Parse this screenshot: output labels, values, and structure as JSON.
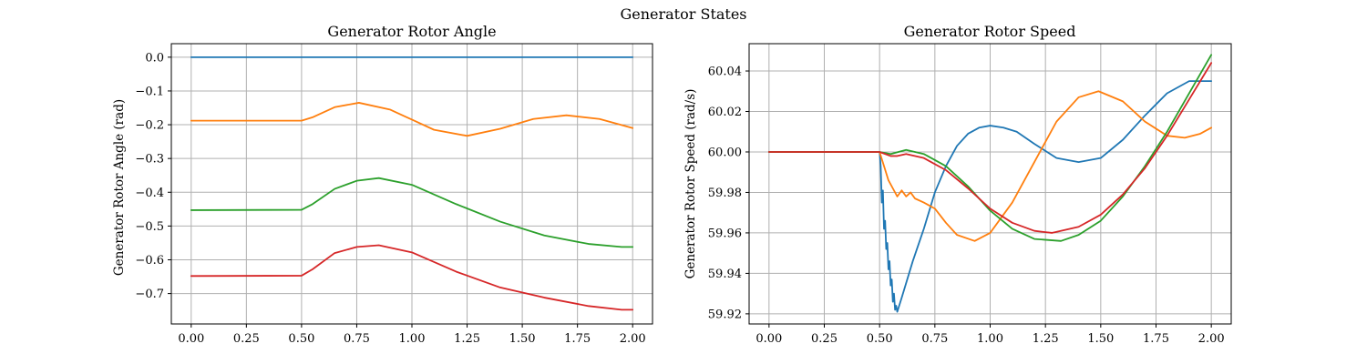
{
  "suptitle": "Generator States",
  "series_colors": [
    "#1f77b4",
    "#ff7f0e",
    "#2ca02c",
    "#d62728"
  ],
  "chart_data": [
    {
      "type": "line",
      "title": "Generator Rotor Angle",
      "xlabel": "",
      "ylabel": "Generator Rotor Angle (rad)",
      "xlim": [
        -0.09,
        2.09
      ],
      "ylim": [
        -0.79,
        0.04
      ],
      "xticks": [
        0.0,
        0.25,
        0.5,
        0.75,
        1.0,
        1.25,
        1.5,
        1.75,
        2.0
      ],
      "xtick_labels": [
        "0.00",
        "0.25",
        "0.50",
        "0.75",
        "1.00",
        "1.25",
        "1.50",
        "1.75",
        "2.00"
      ],
      "yticks": [
        0.0,
        -0.1,
        -0.2,
        -0.3,
        -0.4,
        -0.5,
        -0.6,
        -0.7
      ],
      "ytick_labels": [
        "0.0",
        "−0.1",
        "−0.2",
        "−0.3",
        "−0.4",
        "−0.5",
        "−0.6",
        "−0.7"
      ],
      "grid": true,
      "series": [
        {
          "x": [
            0.0,
            0.5,
            1.0,
            1.5,
            2.0
          ],
          "y": [
            0.0,
            0.0,
            0.0,
            0.0,
            0.0
          ]
        },
        {
          "x": [
            0.0,
            0.5,
            0.55,
            0.65,
            0.76,
            0.9,
            1.0,
            1.1,
            1.25,
            1.4,
            1.55,
            1.7,
            1.85,
            2.0
          ],
          "y": [
            -0.188,
            -0.188,
            -0.178,
            -0.148,
            -0.135,
            -0.155,
            -0.185,
            -0.215,
            -0.233,
            -0.212,
            -0.183,
            -0.172,
            -0.183,
            -0.21
          ]
        },
        {
          "x": [
            0.0,
            0.5,
            0.55,
            0.65,
            0.75,
            0.85,
            1.0,
            1.2,
            1.4,
            1.6,
            1.8,
            1.95,
            2.0
          ],
          "y": [
            -0.453,
            -0.452,
            -0.435,
            -0.39,
            -0.366,
            -0.358,
            -0.378,
            -0.435,
            -0.487,
            -0.528,
            -0.553,
            -0.562,
            -0.562
          ]
        },
        {
          "x": [
            0.0,
            0.5,
            0.55,
            0.65,
            0.75,
            0.85,
            1.0,
            1.2,
            1.4,
            1.6,
            1.8,
            1.95,
            2.0
          ],
          "y": [
            -0.648,
            -0.647,
            -0.628,
            -0.58,
            -0.562,
            -0.557,
            -0.578,
            -0.635,
            -0.682,
            -0.712,
            -0.737,
            -0.748,
            -0.748
          ]
        }
      ]
    },
    {
      "type": "line",
      "title": "Generator Rotor Speed",
      "xlabel": "",
      "ylabel": "Generator Rotor Speed (rad/s)",
      "xlim": [
        -0.09,
        2.09
      ],
      "ylim": [
        59.915,
        60.0535
      ],
      "xticks": [
        0.0,
        0.25,
        0.5,
        0.75,
        1.0,
        1.25,
        1.5,
        1.75,
        2.0
      ],
      "xtick_labels": [
        "0.00",
        "0.25",
        "0.50",
        "0.75",
        "1.00",
        "1.25",
        "1.50",
        "1.75",
        "2.00"
      ],
      "yticks": [
        59.92,
        59.94,
        59.96,
        59.98,
        60.0,
        60.02,
        60.04
      ],
      "ytick_labels": [
        "59.92",
        "59.94",
        "59.96",
        "59.98",
        "60.00",
        "60.02",
        "60.04"
      ],
      "grid": true,
      "series": [
        {
          "x": [
            0.0,
            0.5,
            0.505,
            0.51,
            0.515,
            0.52,
            0.525,
            0.53,
            0.535,
            0.54,
            0.545,
            0.55,
            0.555,
            0.56,
            0.565,
            0.57,
            0.575,
            0.58,
            0.6,
            0.65,
            0.7,
            0.75,
            0.8,
            0.85,
            0.9,
            0.95,
            1.0,
            1.06,
            1.12,
            1.2,
            1.3,
            1.4,
            1.5,
            1.6,
            1.7,
            1.8,
            1.9,
            2.0
          ],
          "y": [
            60.0,
            60.0,
            59.993,
            59.975,
            59.981,
            59.962,
            59.966,
            59.952,
            59.955,
            59.942,
            59.946,
            59.934,
            59.937,
            59.926,
            59.93,
            59.922,
            59.924,
            59.921,
            59.928,
            59.946,
            59.962,
            59.98,
            59.993,
            60.003,
            60.009,
            60.012,
            60.013,
            60.012,
            60.01,
            60.004,
            59.997,
            59.995,
            59.997,
            60.006,
            60.018,
            60.029,
            60.035,
            60.035
          ]
        },
        {
          "x": [
            0.0,
            0.5,
            0.52,
            0.54,
            0.56,
            0.58,
            0.6,
            0.62,
            0.64,
            0.66,
            0.7,
            0.75,
            0.8,
            0.85,
            0.93,
            1.0,
            1.1,
            1.2,
            1.3,
            1.4,
            1.49,
            1.6,
            1.7,
            1.8,
            1.88,
            1.95,
            2.0
          ],
          "y": [
            60.0,
            60.0,
            59.993,
            59.986,
            59.982,
            59.978,
            59.981,
            59.978,
            59.98,
            59.977,
            59.975,
            59.972,
            59.965,
            59.959,
            59.956,
            59.96,
            59.975,
            59.995,
            60.015,
            60.027,
            60.03,
            60.025,
            60.015,
            60.008,
            60.007,
            60.009,
            60.012
          ]
        },
        {
          "x": [
            0.0,
            0.5,
            0.55,
            0.62,
            0.7,
            0.8,
            0.9,
            1.0,
            1.1,
            1.2,
            1.32,
            1.4,
            1.5,
            1.6,
            1.7,
            1.8,
            1.9,
            2.0
          ],
          "y": [
            60.0,
            60.0,
            59.999,
            60.001,
            59.999,
            59.993,
            59.983,
            59.971,
            59.962,
            59.957,
            59.956,
            59.959,
            59.966,
            59.978,
            59.993,
            60.01,
            60.029,
            60.048
          ]
        },
        {
          "x": [
            0.0,
            0.5,
            0.55,
            0.58,
            0.62,
            0.7,
            0.8,
            0.9,
            1.0,
            1.1,
            1.2,
            1.28,
            1.4,
            1.5,
            1.6,
            1.7,
            1.8,
            1.9,
            2.0
          ],
          "y": [
            60.0,
            60.0,
            59.998,
            59.998,
            59.999,
            59.997,
            59.991,
            59.982,
            59.972,
            59.965,
            59.961,
            59.96,
            59.963,
            59.969,
            59.979,
            59.992,
            60.008,
            60.026,
            60.044
          ]
        }
      ]
    }
  ]
}
